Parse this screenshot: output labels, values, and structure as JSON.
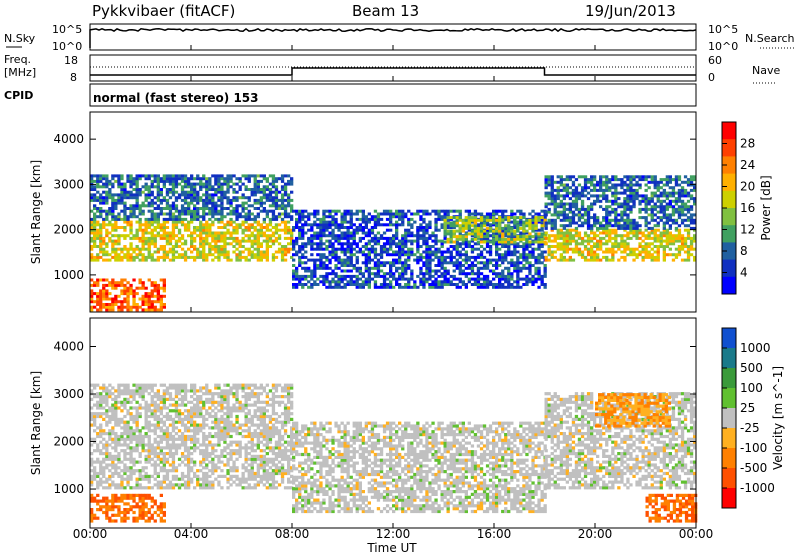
{
  "header": {
    "station": "Pykkvibaer (fitACF)",
    "beam": "Beam 13",
    "date": "19/Jun/2013"
  },
  "panels": {
    "nsky": {
      "left_label": "N.Sky",
      "left_tick_top": "10^5",
      "left_tick_bottom": "10^0",
      "right_tick_top": "10^5",
      "right_tick_bottom": "10^0",
      "right_label": "N.Search"
    },
    "freq": {
      "left_label_1": "Freq.",
      "left_label_2": "[MHz]",
      "left_tick_top": "18",
      "left_tick_bottom": "8",
      "right_tick_top": "60",
      "right_tick_bottom": "0",
      "right_label": "Nave"
    },
    "cpid": {
      "label": "CPID",
      "value": "normal (fast stereo) 153"
    }
  },
  "axes": {
    "ylabel": "Slant Range [km]",
    "yticks": [
      "4000",
      "3000",
      "2000",
      "1000"
    ],
    "xticks": [
      "00:00",
      "04:00",
      "08:00",
      "12:00",
      "16:00",
      "20:00",
      "00:00"
    ],
    "xlabel": "Time UT"
  },
  "colorbars": {
    "power": {
      "label": "Power [dB]",
      "ticks": [
        "28",
        "24",
        "20",
        "16",
        "12",
        "8",
        "4"
      ],
      "colors": [
        "#ff0000",
        "#ff4000",
        "#ff8000",
        "#ffb000",
        "#cdd000",
        "#80c040",
        "#40a060",
        "#2060a0",
        "#1030c0",
        "#0000ff"
      ]
    },
    "velocity": {
      "label": "Velocity [m s^-1]",
      "ticks": [
        "1000",
        "500",
        "100",
        "25",
        "-25",
        "-100",
        "-500",
        "-1000"
      ],
      "colors": [
        "#1050d0",
        "#1a7a8a",
        "#3a9a3a",
        "#60c030",
        "#c0c0c0",
        "#ffb020",
        "#ff8000",
        "#ff5000",
        "#ff0000"
      ]
    }
  },
  "chart_data": [
    {
      "type": "heatmap",
      "title": "Power",
      "xlabel": "Time UT",
      "ylabel": "Slant Range [km]",
      "xlim": [
        0,
        24
      ],
      "ylim": [
        180,
        4600
      ],
      "colorbar_range": [
        0,
        32
      ],
      "bands": [
        {
          "t0": 0,
          "t1": 8,
          "r0": 1300,
          "r1": 2200,
          "value": 18
        },
        {
          "t0": 0,
          "t1": 8,
          "r0": 2200,
          "r1": 3200,
          "value": 8
        },
        {
          "t0": 0,
          "t1": 3,
          "r0": 200,
          "r1": 900,
          "value": 26
        },
        {
          "t0": 8,
          "t1": 18,
          "r0": 700,
          "r1": 2400,
          "value": 6
        },
        {
          "t0": 14,
          "t1": 18,
          "r0": 1700,
          "r1": 2300,
          "value": 15
        },
        {
          "t0": 18,
          "t1": 24,
          "r0": 1300,
          "r1": 2000,
          "value": 18
        },
        {
          "t0": 18,
          "t1": 24,
          "r0": 2000,
          "r1": 3200,
          "value": 8
        }
      ]
    },
    {
      "type": "heatmap",
      "title": "Velocity",
      "xlabel": "Time UT",
      "ylabel": "Slant Range [km]",
      "xlim": [
        0,
        24
      ],
      "ylim": [
        180,
        4600
      ],
      "colorbar_range": [
        -1000,
        1000
      ],
      "bands": [
        {
          "t0": 0,
          "t1": 8,
          "r0": 1000,
          "r1": 3200,
          "value": 0
        },
        {
          "t0": 0,
          "t1": 3,
          "r0": 300,
          "r1": 900,
          "value": -500
        },
        {
          "t0": 8,
          "t1": 18,
          "r0": 500,
          "r1": 2400,
          "value": 0
        },
        {
          "t0": 18,
          "t1": 24,
          "r0": 1000,
          "r1": 3000,
          "value": 0
        },
        {
          "t0": 20,
          "t1": 23,
          "r0": 2300,
          "r1": 3000,
          "value": -100
        },
        {
          "t0": 22,
          "t1": 24,
          "r0": 300,
          "r1": 900,
          "value": -500
        }
      ]
    }
  ]
}
